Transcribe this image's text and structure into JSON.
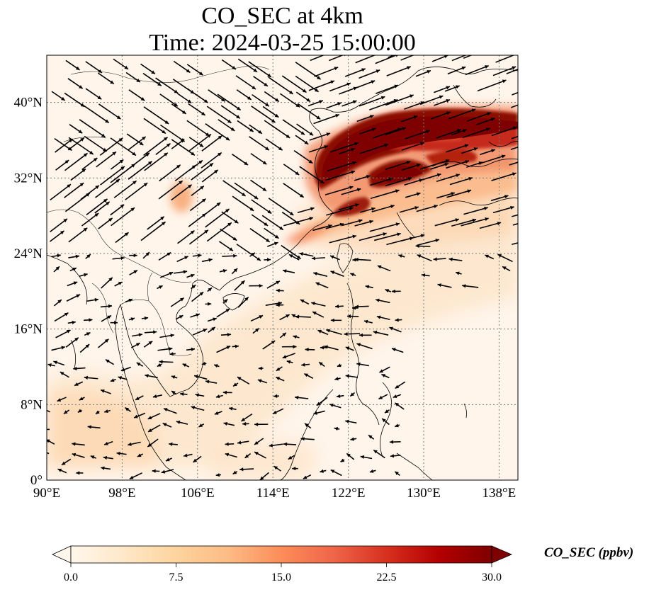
{
  "title": {
    "line1": "CO_SEC at 4km",
    "line2": "Time: 2024-03-25 15:00:00"
  },
  "map": {
    "lon_range": [
      90,
      140
    ],
    "lat_range": [
      0,
      45
    ],
    "x_ticks": [
      {
        "value": 90,
        "label": "90°E"
      },
      {
        "value": 98,
        "label": "98°E"
      },
      {
        "value": 106,
        "label": "106°E"
      },
      {
        "value": 114,
        "label": "114°E"
      },
      {
        "value": 122,
        "label": "122°E"
      },
      {
        "value": 130,
        "label": "130°E"
      },
      {
        "value": 138,
        "label": "138°E"
      }
    ],
    "y_ticks": [
      {
        "value": 0,
        "label": "0°"
      },
      {
        "value": 8,
        "label": "8°N"
      },
      {
        "value": 16,
        "label": "16°N"
      },
      {
        "value": 24,
        "label": "24°N"
      },
      {
        "value": 32,
        "label": "32°N"
      },
      {
        "value": 40,
        "label": "40°N"
      }
    ],
    "gridlines": true,
    "plume_colors": {
      "high": "#7f0000",
      "mid": "#d7301f",
      "low": "#fdd49e",
      "background": "#fff5eb"
    }
  },
  "colorbar": {
    "title": "CO_SEC (ppbv)",
    "min": 0,
    "max": 30,
    "extend": "both",
    "ticks": [
      {
        "value": 0,
        "label": "0.0"
      },
      {
        "value": 7.5,
        "label": "7.5"
      },
      {
        "value": 15,
        "label": "15.0"
      },
      {
        "value": 22.5,
        "label": "22.5"
      },
      {
        "value": 30,
        "label": "30.0"
      }
    ],
    "stops": [
      "#fff7ec",
      "#fee8c8",
      "#fdd49e",
      "#fdbb84",
      "#fc8d59",
      "#ef6548",
      "#d7301f",
      "#b30000",
      "#7f0000"
    ]
  }
}
